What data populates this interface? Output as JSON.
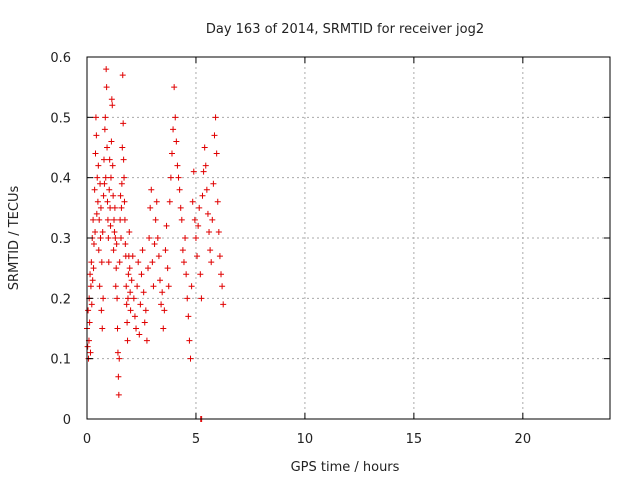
{
  "chart_data": {
    "type": "scatter",
    "title": "Day 163 of 2014, SRMTID for receiver jog2",
    "xlabel": "GPS time / hours",
    "ylabel": "SRMTID / TECUs",
    "xlim": [
      0,
      24
    ],
    "ylim": [
      0,
      0.6
    ],
    "xticks": [
      0,
      5,
      10,
      15,
      20
    ],
    "xtick_labels": [
      "0",
      "5",
      "10",
      "15",
      "20"
    ],
    "yticks": [
      0,
      0.1,
      0.2,
      0.3,
      0.4,
      0.5,
      0.6
    ],
    "ytick_labels": [
      "0",
      "0.1",
      "0.2",
      "0.3",
      "0.4",
      "0.5",
      "0.6"
    ],
    "grid": true,
    "legend": "none",
    "marker": "plus",
    "color": "#e00000",
    "series": [
      {
        "name": "SRMTID",
        "points": [
          [
            0.0,
            0.15
          ],
          [
            0.03,
            0.12
          ],
          [
            0.05,
            0.18
          ],
          [
            0.07,
            0.1
          ],
          [
            0.09,
            0.13
          ],
          [
            0.1,
            0.2
          ],
          [
            0.12,
            0.16
          ],
          [
            0.14,
            0.24
          ],
          [
            0.16,
            0.11
          ],
          [
            0.18,
            0.22
          ],
          [
            0.2,
            0.26
          ],
          [
            0.22,
            0.19
          ],
          [
            0.24,
            0.3
          ],
          [
            0.26,
            0.23
          ],
          [
            0.28,
            0.33
          ],
          [
            0.3,
            0.25
          ],
          [
            0.32,
            0.29
          ],
          [
            0.35,
            0.38
          ],
          [
            0.37,
            0.31
          ],
          [
            0.39,
            0.44
          ],
          [
            0.41,
            0.5
          ],
          [
            0.43,
            0.47
          ],
          [
            0.45,
            0.34
          ],
          [
            0.47,
            0.4
          ],
          [
            0.5,
            0.36
          ],
          [
            0.52,
            0.42
          ],
          [
            0.54,
            0.28
          ],
          [
            0.56,
            0.33
          ],
          [
            0.58,
            0.22
          ],
          [
            0.6,
            0.39
          ],
          [
            0.62,
            0.3
          ],
          [
            0.64,
            0.35
          ],
          [
            0.66,
            0.18
          ],
          [
            0.68,
            0.26
          ],
          [
            0.7,
            0.15
          ],
          [
            0.72,
            0.31
          ],
          [
            0.74,
            0.2
          ],
          [
            0.76,
            0.37
          ],
          [
            0.78,
            0.43
          ],
          [
            0.8,
            0.39
          ],
          [
            0.82,
            0.48
          ],
          [
            0.84,
            0.5
          ],
          [
            0.86,
            0.4
          ],
          [
            0.88,
            0.58
          ],
          [
            0.9,
            0.55
          ],
          [
            0.92,
            0.45
          ],
          [
            0.94,
            0.36
          ],
          [
            0.96,
            0.33
          ],
          [
            0.98,
            0.3
          ],
          [
            1.0,
            0.26
          ],
          [
            1.02,
            0.38
          ],
          [
            1.04,
            0.43
          ],
          [
            1.06,
            0.35
          ],
          [
            1.08,
            0.32
          ],
          [
            1.1,
            0.4
          ],
          [
            1.12,
            0.46
          ],
          [
            1.14,
            0.53
          ],
          [
            1.16,
            0.52
          ],
          [
            1.18,
            0.42
          ],
          [
            1.2,
            0.37
          ],
          [
            1.22,
            0.28
          ],
          [
            1.24,
            0.33
          ],
          [
            1.26,
            0.31
          ],
          [
            1.28,
            0.35
          ],
          [
            1.3,
            0.3
          ],
          [
            1.32,
            0.22
          ],
          [
            1.34,
            0.25
          ],
          [
            1.36,
            0.29
          ],
          [
            1.38,
            0.2
          ],
          [
            1.4,
            0.15
          ],
          [
            1.42,
            0.11
          ],
          [
            1.44,
            0.07
          ],
          [
            1.46,
            0.04
          ],
          [
            1.48,
            0.1
          ],
          [
            1.5,
            0.26
          ],
          [
            1.52,
            0.33
          ],
          [
            1.54,
            0.37
          ],
          [
            1.56,
            0.3
          ],
          [
            1.58,
            0.35
          ],
          [
            1.6,
            0.39
          ],
          [
            1.62,
            0.45
          ],
          [
            1.64,
            0.57
          ],
          [
            1.66,
            0.49
          ],
          [
            1.68,
            0.43
          ],
          [
            1.7,
            0.4
          ],
          [
            1.72,
            0.36
          ],
          [
            1.74,
            0.33
          ],
          [
            1.76,
            0.29
          ],
          [
            1.78,
            0.27
          ],
          [
            1.8,
            0.22
          ],
          [
            1.82,
            0.19
          ],
          [
            1.84,
            0.16
          ],
          [
            1.86,
            0.13
          ],
          [
            1.88,
            0.2
          ],
          [
            1.9,
            0.24
          ],
          [
            1.92,
            0.27
          ],
          [
            1.94,
            0.31
          ],
          [
            1.96,
            0.25
          ],
          [
            1.98,
            0.21
          ],
          [
            2.0,
            0.18
          ],
          [
            2.05,
            0.23
          ],
          [
            2.1,
            0.27
          ],
          [
            2.15,
            0.2
          ],
          [
            2.2,
            0.17
          ],
          [
            2.25,
            0.15
          ],
          [
            2.3,
            0.22
          ],
          [
            2.35,
            0.26
          ],
          [
            2.4,
            0.14
          ],
          [
            2.45,
            0.19
          ],
          [
            2.5,
            0.24
          ],
          [
            2.55,
            0.28
          ],
          [
            2.6,
            0.21
          ],
          [
            2.65,
            0.16
          ],
          [
            2.7,
            0.18
          ],
          [
            2.75,
            0.13
          ],
          [
            2.8,
            0.25
          ],
          [
            2.85,
            0.3
          ],
          [
            2.9,
            0.35
          ],
          [
            2.95,
            0.38
          ],
          [
            3.0,
            0.26
          ],
          [
            3.05,
            0.22
          ],
          [
            3.1,
            0.29
          ],
          [
            3.15,
            0.33
          ],
          [
            3.2,
            0.36
          ],
          [
            3.25,
            0.3
          ],
          [
            3.3,
            0.27
          ],
          [
            3.35,
            0.23
          ],
          [
            3.4,
            0.19
          ],
          [
            3.45,
            0.21
          ],
          [
            3.5,
            0.15
          ],
          [
            3.55,
            0.18
          ],
          [
            3.6,
            0.28
          ],
          [
            3.65,
            0.32
          ],
          [
            3.7,
            0.25
          ],
          [
            3.75,
            0.22
          ],
          [
            3.8,
            0.36
          ],
          [
            3.85,
            0.4
          ],
          [
            3.9,
            0.44
          ],
          [
            3.95,
            0.48
          ],
          [
            4.0,
            0.55
          ],
          [
            4.05,
            0.5
          ],
          [
            4.1,
            0.46
          ],
          [
            4.15,
            0.42
          ],
          [
            4.2,
            0.4
          ],
          [
            4.25,
            0.38
          ],
          [
            4.3,
            0.35
          ],
          [
            4.35,
            0.33
          ],
          [
            4.4,
            0.28
          ],
          [
            4.45,
            0.26
          ],
          [
            4.5,
            0.3
          ],
          [
            4.55,
            0.24
          ],
          [
            4.6,
            0.2
          ],
          [
            4.65,
            0.17
          ],
          [
            4.7,
            0.13
          ],
          [
            4.75,
            0.1
          ],
          [
            4.8,
            0.22
          ],
          [
            4.85,
            0.36
          ],
          [
            4.9,
            0.41
          ],
          [
            4.95,
            0.33
          ],
          [
            5.0,
            0.3
          ],
          [
            5.05,
            0.27
          ],
          [
            5.1,
            0.32
          ],
          [
            5.15,
            0.35
          ],
          [
            5.2,
            0.24
          ],
          [
            5.25,
            0.2
          ],
          [
            5.3,
            0.37
          ],
          [
            5.35,
            0.41
          ],
          [
            5.4,
            0.45
          ],
          [
            5.45,
            0.42
          ],
          [
            5.5,
            0.38
          ],
          [
            5.55,
            0.34
          ],
          [
            5.6,
            0.31
          ],
          [
            5.65,
            0.28
          ],
          [
            5.7,
            0.26
          ],
          [
            5.75,
            0.33
          ],
          [
            5.8,
            0.39
          ],
          [
            5.85,
            0.47
          ],
          [
            5.9,
            0.5
          ],
          [
            5.95,
            0.44
          ],
          [
            6.0,
            0.36
          ],
          [
            6.05,
            0.31
          ],
          [
            6.1,
            0.27
          ],
          [
            6.15,
            0.24
          ],
          [
            6.2,
            0.22
          ],
          [
            6.25,
            0.19
          ],
          [
            5.22,
            0.0
          ],
          [
            5.26,
            0.0
          ]
        ]
      }
    ]
  }
}
